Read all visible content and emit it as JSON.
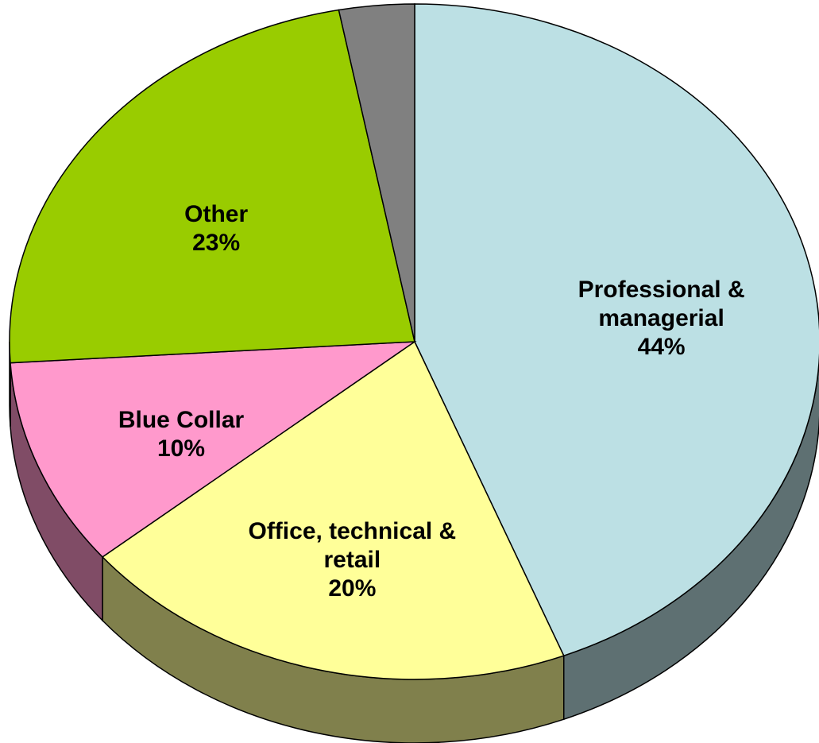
{
  "chart_data": {
    "type": "pie",
    "categories": [
      "Professional & managerial",
      "Office, technical & retail",
      "Blue Collar",
      "Other",
      null
    ],
    "values": [
      44,
      20,
      10,
      23,
      3
    ],
    "value_labels": [
      "44%",
      "20%",
      "10%",
      "23%",
      null
    ],
    "colors": [
      "#bce0e4",
      "#ffff99",
      "#ff99cc",
      "#99cc00",
      "#808080"
    ],
    "side_colors": [
      "#5e7072",
      "#80804c",
      "#804c66",
      "#4c6600",
      "#404040"
    ],
    "start_angle": 0,
    "direction": "clockwise",
    "3d": true
  }
}
